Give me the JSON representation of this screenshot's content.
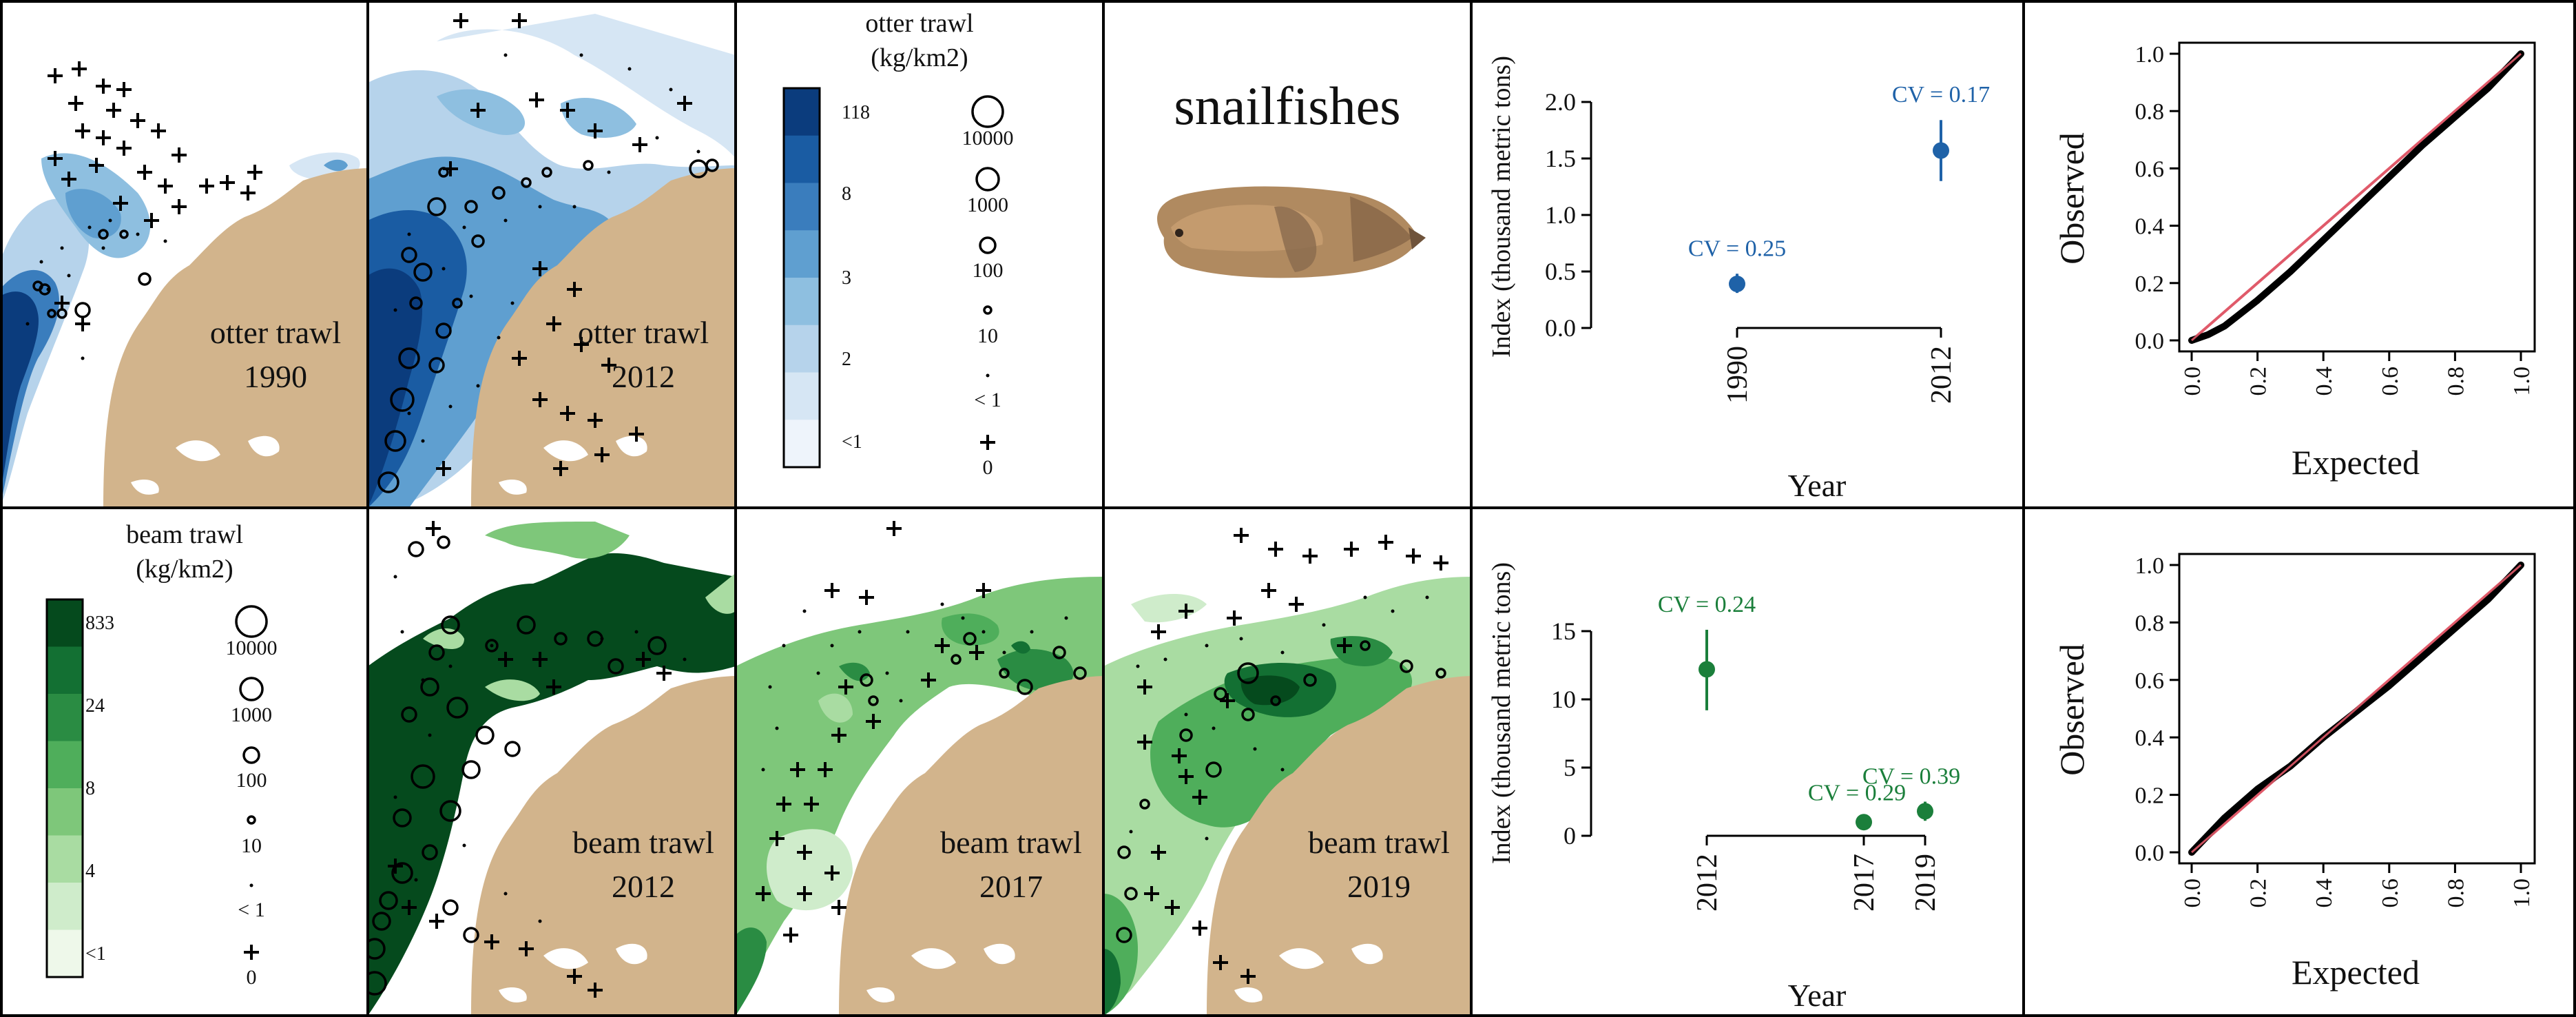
{
  "figure": {
    "species": "snailfishes",
    "colors": {
      "land": "#D2B48C",
      "otter_ramp": [
        "#ffffff",
        "#eef4fb",
        "#d6e6f4",
        "#b6d3eb",
        "#8ebfe0",
        "#5f9fd0",
        "#3a7dbd",
        "#1a5ca3",
        "#0b3c7d"
      ],
      "beam_ramp": [
        "#ffffff",
        "#eef8ea",
        "#cfeccb",
        "#a9dca2",
        "#7ec77a",
        "#4fae5b",
        "#2a8c43",
        "#137033",
        "#054a1d"
      ],
      "otter_point": "#1f62a8",
      "beam_point": "#1b7f3b",
      "reference_line": "#e05a6a"
    }
  },
  "otter": {
    "maps": [
      {
        "label": "otter trawl",
        "year": "1990"
      },
      {
        "label": "otter trawl",
        "year": "2012"
      }
    ],
    "legend": {
      "title": "otter trawl",
      "units": "(kg/km2)",
      "color_breaks": [
        "118",
        "8",
        "3",
        "2",
        "<1"
      ],
      "sizes": [
        "10000",
        "1000",
        "100",
        "10",
        "< 1",
        "0"
      ]
    }
  },
  "beam": {
    "maps": [
      {
        "label": "beam trawl",
        "year": "2012"
      },
      {
        "label": "beam trawl",
        "year": "2017"
      },
      {
        "label": "beam trawl",
        "year": "2019"
      }
    ],
    "legend": {
      "title": "beam trawl",
      "units": "(kg/km2)",
      "color_breaks": [
        "833",
        "24",
        "8",
        "4",
        "<1"
      ],
      "sizes": [
        "10000",
        "1000",
        "100",
        "10",
        "< 1",
        "0"
      ]
    }
  },
  "chart_data": [
    {
      "type": "scatter",
      "panel": "otter index",
      "ylabel": "Index (thousand metric tons)",
      "xlabel": "Year",
      "x": [
        "1990",
        "2012"
      ],
      "y": [
        0.39,
        1.57
      ],
      "ci": [
        [
          0.31,
          0.48
        ],
        [
          1.3,
          1.84
        ]
      ],
      "cv_labels": [
        "CV = 0.25",
        "CV = 0.17"
      ],
      "yticks": [
        "0.0",
        "0.5",
        "1.0",
        "1.5",
        "2.0"
      ],
      "ylim": [
        0,
        2
      ]
    },
    {
      "type": "line",
      "panel": "otter QQ",
      "xlabel": "Expected",
      "ylabel": "Observed",
      "xlim": [
        0,
        1
      ],
      "ylim": [
        0,
        1
      ],
      "ticks": [
        "0.0",
        "0.2",
        "0.4",
        "0.6",
        "0.8",
        "1.0"
      ],
      "x": [
        0,
        0.05,
        0.1,
        0.2,
        0.3,
        0.4,
        0.5,
        0.6,
        0.7,
        0.8,
        0.9,
        0.95,
        1.0
      ],
      "y": [
        0,
        0.02,
        0.05,
        0.14,
        0.24,
        0.35,
        0.46,
        0.57,
        0.68,
        0.78,
        0.88,
        0.94,
        1.0
      ]
    },
    {
      "type": "scatter",
      "panel": "beam index",
      "ylabel": "Index (thousand metric tons)",
      "xlabel": "Year",
      "x": [
        "2012",
        "2017",
        "2019"
      ],
      "y": [
        12.2,
        1.0,
        1.8
      ],
      "ci": [
        [
          9.2,
          15.1
        ],
        [
          0.7,
          1.3
        ],
        [
          1.1,
          2.5
        ]
      ],
      "cv_labels": [
        "CV = 0.24",
        "CV = 0.29",
        "CV = 0.39"
      ],
      "yticks": [
        "0",
        "5",
        "10",
        "15"
      ],
      "ylim": [
        0,
        15
      ]
    },
    {
      "type": "line",
      "panel": "beam QQ",
      "xlabel": "Expected",
      "ylabel": "Observed",
      "xlim": [
        0,
        1
      ],
      "ylim": [
        0,
        1
      ],
      "ticks": [
        "0.0",
        "0.2",
        "0.4",
        "0.6",
        "0.8",
        "1.0"
      ],
      "x": [
        0,
        0.05,
        0.1,
        0.2,
        0.3,
        0.4,
        0.5,
        0.6,
        0.7,
        0.8,
        0.9,
        0.95,
        1.0
      ],
      "y": [
        0,
        0.06,
        0.12,
        0.22,
        0.3,
        0.4,
        0.49,
        0.58,
        0.68,
        0.78,
        0.88,
        0.94,
        1.0
      ]
    }
  ]
}
